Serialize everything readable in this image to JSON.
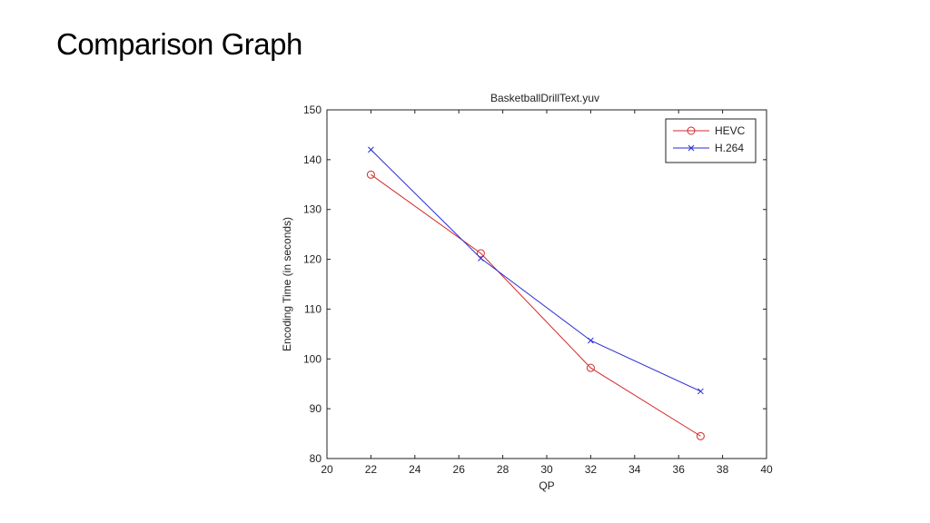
{
  "slide": {
    "title": "Comparison Graph"
  },
  "chart_data": {
    "type": "line",
    "title": "BasketballDrillText.yuv",
    "xlabel": "QP",
    "ylabel": "Encoding Time (in seconds)",
    "xlim": [
      20,
      40
    ],
    "ylim": [
      80,
      150
    ],
    "xticks": [
      20,
      22,
      24,
      26,
      28,
      30,
      32,
      34,
      36,
      38,
      40
    ],
    "yticks": [
      80,
      90,
      100,
      110,
      120,
      130,
      140,
      150
    ],
    "grid": false,
    "legend": "top-right",
    "series": [
      {
        "name": "HEVC",
        "color": "#d42a2a",
        "marker": "circle",
        "x": [
          22,
          27,
          32,
          37
        ],
        "y": [
          137,
          121.2,
          98.2,
          84.5
        ]
      },
      {
        "name": "H.264",
        "color": "#2b2bd8",
        "marker": "x",
        "x": [
          22,
          27,
          32,
          37
        ],
        "y": [
          142,
          120.2,
          103.7,
          93.5
        ]
      }
    ]
  }
}
